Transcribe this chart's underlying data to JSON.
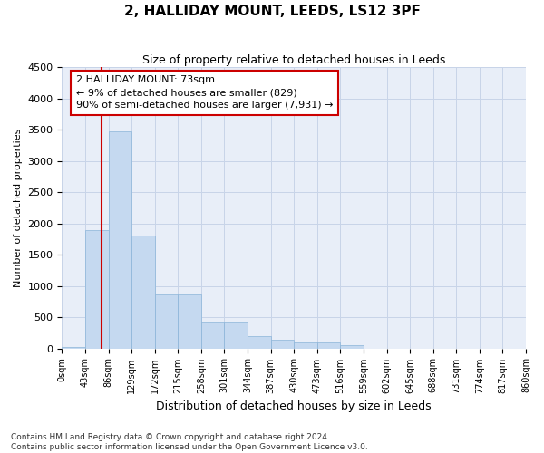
{
  "title": "2, HALLIDAY MOUNT, LEEDS, LS12 3PF",
  "subtitle": "Size of property relative to detached houses in Leeds",
  "xlabel": "Distribution of detached houses by size in Leeds",
  "ylabel": "Number of detached properties",
  "bar_color": "#c5d9f0",
  "bar_edge_color": "#8ab4d8",
  "grid_color": "#c8d4e8",
  "background_color": "#e8eef8",
  "bin_edges": [
    0,
    43,
    86,
    129,
    172,
    215,
    258,
    301,
    344,
    387,
    430,
    473,
    516,
    559,
    602,
    645,
    688,
    731,
    774,
    817,
    860
  ],
  "bin_labels": [
    "0sqm",
    "43sqm",
    "86sqm",
    "129sqm",
    "172sqm",
    "215sqm",
    "258sqm",
    "301sqm",
    "344sqm",
    "387sqm",
    "430sqm",
    "473sqm",
    "516sqm",
    "559sqm",
    "602sqm",
    "645sqm",
    "688sqm",
    "731sqm",
    "774sqm",
    "817sqm",
    "860sqm"
  ],
  "bar_heights": [
    25,
    1900,
    3480,
    1800,
    870,
    870,
    430,
    430,
    200,
    140,
    100,
    95,
    55,
    0,
    0,
    0,
    0,
    0,
    0,
    0
  ],
  "ylim": [
    0,
    4500
  ],
  "yticks": [
    0,
    500,
    1000,
    1500,
    2000,
    2500,
    3000,
    3500,
    4000,
    4500
  ],
  "property_size": 73,
  "vline_color": "#cc0000",
  "annotation_text": "2 HALLIDAY MOUNT: 73sqm\n← 9% of detached houses are smaller (829)\n90% of semi-detached houses are larger (7,931) →",
  "annotation_box_color": "#ffffff",
  "annotation_box_edge": "#cc0000",
  "footer_line1": "Contains HM Land Registry data © Crown copyright and database right 2024.",
  "footer_line2": "Contains public sector information licensed under the Open Government Licence v3.0."
}
